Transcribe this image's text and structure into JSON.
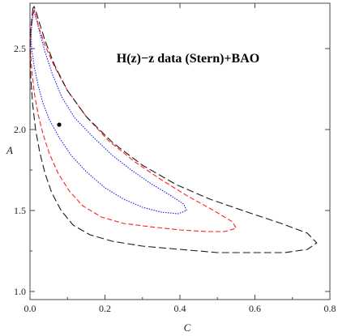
{
  "chart_data": {
    "type": "scatter",
    "title": "H(z)−z data (Stern)+BAO",
    "xlabel": "C",
    "ylabel": "A",
    "xlim": [
      0.0,
      0.8
    ],
    "ylim": [
      0.95,
      2.78
    ],
    "x_ticks": [
      "0.0",
      "0.2",
      "0.4",
      "0.6",
      "0.8"
    ],
    "y_ticks": [
      "1.0",
      "1.5",
      "2.0",
      "2.5"
    ],
    "grid": false,
    "point": {
      "x": 0.078,
      "y": 2.03
    },
    "series": [
      {
        "style": "dotted",
        "color": "#1a1aff",
        "points": [
          [
            0.008,
            2.71
          ],
          [
            0.003,
            2.6
          ],
          [
            0.004,
            2.5
          ],
          [
            0.012,
            2.38
          ],
          [
            0.022,
            2.27
          ],
          [
            0.035,
            2.16
          ],
          [
            0.052,
            2.06
          ],
          [
            0.078,
            1.95
          ],
          [
            0.11,
            1.84
          ],
          [
            0.15,
            1.74
          ],
          [
            0.2,
            1.64
          ],
          [
            0.25,
            1.57
          ],
          [
            0.3,
            1.52
          ],
          [
            0.35,
            1.49
          ],
          [
            0.395,
            1.48
          ],
          [
            0.418,
            1.5
          ],
          [
            0.41,
            1.54
          ],
          [
            0.37,
            1.6
          ],
          [
            0.32,
            1.67
          ],
          [
            0.27,
            1.75
          ],
          [
            0.22,
            1.84
          ],
          [
            0.17,
            1.95
          ],
          [
            0.12,
            2.07
          ],
          [
            0.085,
            2.2
          ],
          [
            0.06,
            2.34
          ],
          [
            0.04,
            2.48
          ],
          [
            0.026,
            2.6
          ],
          [
            0.016,
            2.69
          ],
          [
            0.011,
            2.73
          ],
          [
            0.008,
            2.71
          ]
        ]
      },
      {
        "style": "dashed",
        "color": "#ff2020",
        "points": [
          [
            0.008,
            2.72
          ],
          [
            0.002,
            2.61
          ],
          [
            0.001,
            2.5
          ],
          [
            0.005,
            2.36
          ],
          [
            0.012,
            2.22
          ],
          [
            0.022,
            2.09
          ],
          [
            0.035,
            1.97
          ],
          [
            0.052,
            1.85
          ],
          [
            0.075,
            1.73
          ],
          [
            0.105,
            1.62
          ],
          [
            0.14,
            1.53
          ],
          [
            0.19,
            1.46
          ],
          [
            0.25,
            1.42
          ],
          [
            0.32,
            1.4
          ],
          [
            0.4,
            1.38
          ],
          [
            0.47,
            1.37
          ],
          [
            0.52,
            1.37
          ],
          [
            0.55,
            1.39
          ],
          [
            0.54,
            1.43
          ],
          [
            0.49,
            1.5
          ],
          [
            0.42,
            1.59
          ],
          [
            0.35,
            1.69
          ],
          [
            0.28,
            1.8
          ],
          [
            0.21,
            1.93
          ],
          [
            0.15,
            2.08
          ],
          [
            0.1,
            2.24
          ],
          [
            0.065,
            2.39
          ],
          [
            0.04,
            2.52
          ],
          [
            0.025,
            2.62
          ],
          [
            0.016,
            2.7
          ],
          [
            0.012,
            2.74
          ],
          [
            0.008,
            2.72
          ]
        ]
      },
      {
        "style": "dashed",
        "color": "#1a1a1a",
        "points": [
          [
            0.008,
            2.75
          ],
          [
            0.002,
            2.62
          ],
          [
            0.0,
            2.5
          ],
          [
            0.002,
            2.33
          ],
          [
            0.007,
            2.16
          ],
          [
            0.015,
            2.0
          ],
          [
            0.026,
            1.86
          ],
          [
            0.04,
            1.73
          ],
          [
            0.058,
            1.61
          ],
          [
            0.083,
            1.5
          ],
          [
            0.115,
            1.41
          ],
          [
            0.16,
            1.35
          ],
          [
            0.22,
            1.31
          ],
          [
            0.3,
            1.28
          ],
          [
            0.4,
            1.26
          ],
          [
            0.5,
            1.24
          ],
          [
            0.6,
            1.24
          ],
          [
            0.68,
            1.24
          ],
          [
            0.74,
            1.26
          ],
          [
            0.765,
            1.3
          ],
          [
            0.74,
            1.36
          ],
          [
            0.67,
            1.42
          ],
          [
            0.58,
            1.49
          ],
          [
            0.48,
            1.57
          ],
          [
            0.39,
            1.66
          ],
          [
            0.3,
            1.78
          ],
          [
            0.22,
            1.92
          ],
          [
            0.15,
            2.08
          ],
          [
            0.1,
            2.24
          ],
          [
            0.065,
            2.4
          ],
          [
            0.04,
            2.55
          ],
          [
            0.025,
            2.66
          ],
          [
            0.016,
            2.73
          ],
          [
            0.011,
            2.76
          ],
          [
            0.008,
            2.75
          ]
        ]
      }
    ]
  }
}
